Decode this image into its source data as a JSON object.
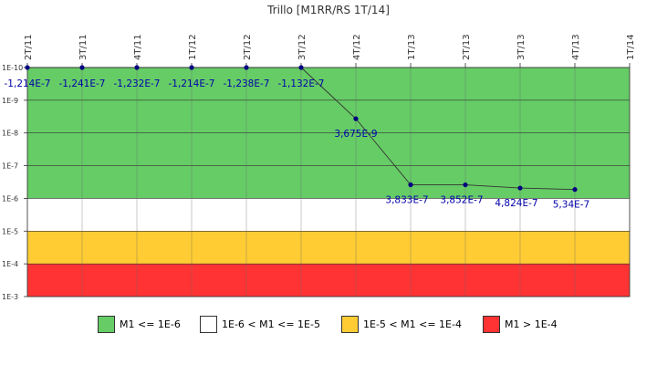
{
  "chart_data": {
    "type": "line",
    "title": "Trillo [M1RR/RS 1T/14]",
    "x_categories": [
      "2T/11",
      "3T/11",
      "4T/11",
      "1T/12",
      "2T/12",
      "3T/12",
      "4T/12",
      "1T/13",
      "2T/13",
      "3T/13",
      "4T/13",
      "1T/14"
    ],
    "y_scale": "log",
    "y_axis_inverted": true,
    "ylim": [
      1e-10,
      0.001
    ],
    "y_ticks": [
      {
        "value": 1e-10,
        "label": "1E-10"
      },
      {
        "value": 1e-09,
        "label": "1E-9"
      },
      {
        "value": 1e-08,
        "label": "1E-8"
      },
      {
        "value": 1e-07,
        "label": "1E-7"
      },
      {
        "value": 1e-06,
        "label": "1E-6"
      },
      {
        "value": 1e-05,
        "label": "1E-5"
      },
      {
        "value": 0.0001,
        "label": "1E-4"
      },
      {
        "value": 0.001,
        "label": "1E-3"
      }
    ],
    "series": [
      {
        "points": [
          {
            "x": "2T/11",
            "y": 1e-10,
            "label": "-1,214E-7"
          },
          {
            "x": "3T/11",
            "y": 1e-10,
            "label": "-1,241E-7"
          },
          {
            "x": "4T/11",
            "y": 1e-10,
            "label": "-1,232E-7"
          },
          {
            "x": "1T/12",
            "y": 1e-10,
            "label": "-1,214E-7"
          },
          {
            "x": "2T/12",
            "y": 1e-10,
            "label": "-1,238E-7"
          },
          {
            "x": "3T/12",
            "y": 1e-10,
            "label": "-1,132E-7"
          },
          {
            "x": "4T/12",
            "y": 3.675e-09,
            "label": "3,675E-9"
          },
          {
            "x": "1T/13",
            "y": 3.833e-07,
            "label": "3,833E-7"
          },
          {
            "x": "2T/13",
            "y": 3.852e-07,
            "label": "3,852E-7"
          },
          {
            "x": "3T/13",
            "y": 4.824e-07,
            "label": "4,824E-7"
          },
          {
            "x": "4T/13",
            "y": 5.34e-07,
            "label": "5,34E-7"
          }
        ],
        "line_color": "#333333",
        "marker_color": "#000080",
        "label_color": "#0000aa"
      }
    ],
    "bands": [
      {
        "from": 1e-10,
        "to": 1e-06,
        "color": "#66cc66",
        "label": "M1 <= 1E-6"
      },
      {
        "from": 1e-06,
        "to": 1e-05,
        "color": "#ffffff",
        "label": "1E-6 < M1 <= 1E-5"
      },
      {
        "from": 1e-05,
        "to": 0.0001,
        "color": "#ffcc33",
        "label": "1E-5 < M1 <= 1E-4"
      },
      {
        "from": 0.0001,
        "to": 0.001,
        "color": "#ff3333",
        "label": "M1 > 1E-4"
      }
    ],
    "legend_position": "bottom"
  }
}
